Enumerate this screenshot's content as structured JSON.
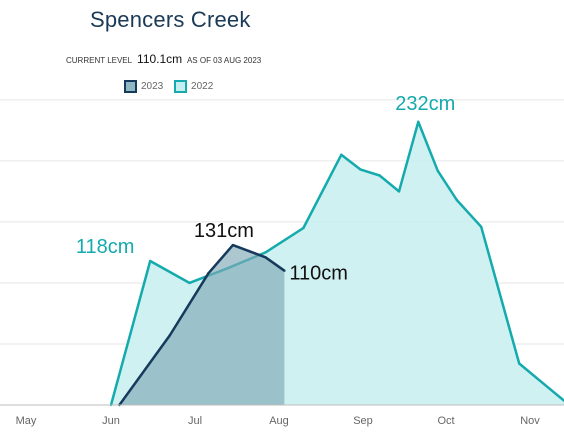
{
  "header": {
    "title": "Spencers Creek",
    "current_level_label": "CURRENT LEVEL",
    "current_level_value": "110.1cm",
    "as_of_label": "AS OF 03 AUG 2023"
  },
  "colors": {
    "series_2023_line": "#163a5c",
    "series_2023_fill": "#7fa9b6",
    "series_2022_line": "#15aaad",
    "series_2022_fill": "#c7eeee",
    "grid": "#e6e6e6",
    "title": "#1b3a57"
  },
  "chart_data": {
    "type": "area",
    "title": "Spencers Creek",
    "xlabel": "",
    "ylabel": "",
    "x_ticks": [
      "May",
      "Jun",
      "Jul",
      "Aug",
      "Sep",
      "Oct",
      "Nov"
    ],
    "ylim": [
      0,
      250
    ],
    "grid": true,
    "legend_position": "top-left",
    "series": [
      {
        "name": "2022",
        "points": [
          {
            "x": "2022-06-01",
            "y": 0
          },
          {
            "x": "2022-06-15",
            "y": 118
          },
          {
            "x": "2022-06-29",
            "y": 100
          },
          {
            "x": "2022-07-13",
            "y": 112
          },
          {
            "x": "2022-07-27",
            "y": 125
          },
          {
            "x": "2022-08-10",
            "y": 145
          },
          {
            "x": "2022-08-24",
            "y": 205
          },
          {
            "x": "2022-08-31",
            "y": 193
          },
          {
            "x": "2022-09-07",
            "y": 188
          },
          {
            "x": "2022-09-14",
            "y": 175
          },
          {
            "x": "2022-09-21",
            "y": 232
          },
          {
            "x": "2022-09-28",
            "y": 192
          },
          {
            "x": "2022-10-05",
            "y": 168
          },
          {
            "x": "2022-10-14",
            "y": 146
          },
          {
            "x": "2022-10-28",
            "y": 34
          },
          {
            "x": "2022-11-15",
            "y": 0
          }
        ]
      },
      {
        "name": "2023",
        "points": [
          {
            "x": "2023-06-04",
            "y": 0
          },
          {
            "x": "2023-06-22",
            "y": 57
          },
          {
            "x": "2023-07-06",
            "y": 108
          },
          {
            "x": "2023-07-15",
            "y": 131
          },
          {
            "x": "2023-07-27",
            "y": 121
          },
          {
            "x": "2023-08-03",
            "y": 110
          }
        ]
      }
    ],
    "annotations": [
      {
        "text": "118cm",
        "series": "2022",
        "x": "2022-06-15",
        "y": 118
      },
      {
        "text": "232cm",
        "series": "2022",
        "x": "2022-09-21",
        "y": 232
      },
      {
        "text": "131cm",
        "series": "2023",
        "x": "2023-07-15",
        "y": 131
      },
      {
        "text": "110cm",
        "series": "2023",
        "x": "2023-08-03",
        "y": 110
      }
    ]
  }
}
